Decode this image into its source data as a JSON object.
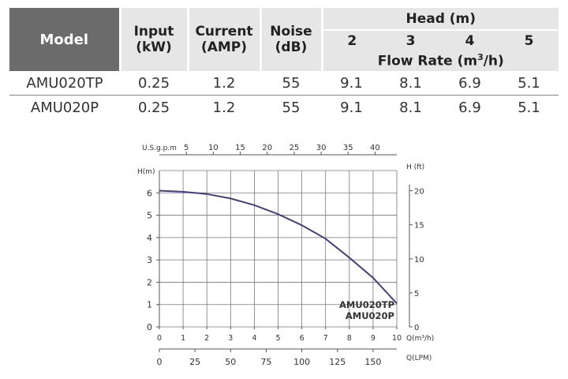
{
  "table": {
    "headers": {
      "model": "Model",
      "input": [
        "Input",
        "(kW)"
      ],
      "current": [
        "Current",
        "(AMP)"
      ],
      "noise": [
        "Noise",
        "(dB)"
      ],
      "head": "Head (m)",
      "head_values": [
        "2",
        "3",
        "4",
        "5"
      ],
      "flow_rate_prefix": "Flow Rate (m",
      "flow_rate_sup": "3",
      "flow_rate_suffix": "/h)"
    },
    "rows": [
      {
        "model": "AMU020TP",
        "input": "0.25",
        "current": "1.2",
        "noise": "55",
        "flows": [
          "9.1",
          "8.1",
          "6.9",
          "5.1"
        ]
      },
      {
        "model": "AMU020P",
        "input": "0.25",
        "current": "1.2",
        "noise": "55",
        "flows": [
          "9.1",
          "8.1",
          "6.9",
          "5.1"
        ]
      }
    ]
  },
  "chart_data": {
    "type": "line",
    "x": [
      0,
      1,
      2,
      3,
      4,
      5,
      6,
      7,
      8,
      9,
      10
    ],
    "series": [
      {
        "name": "AMU020TP AMU020P",
        "values": [
          6.1,
          6.05,
          5.95,
          5.75,
          5.45,
          5.05,
          4.55,
          3.95,
          3.1,
          2.2,
          1.05
        ]
      }
    ],
    "legend_lines": [
      "AMU020TP",
      "AMU020P"
    ],
    "xlim": [
      0,
      10
    ],
    "ylim": [
      0,
      7
    ],
    "grid": true,
    "legend_position": "bottom-right",
    "series_color": "#4a3d7a",
    "axes": {
      "left": {
        "label": "H(m)",
        "ticks": [
          "0",
          "1",
          "2",
          "3",
          "4",
          "5",
          "6"
        ]
      },
      "right": {
        "label": "H (ft)",
        "ticks": [
          "0",
          "5",
          "10",
          "15",
          "20"
        ],
        "values": [
          0,
          5,
          10,
          15,
          20
        ]
      },
      "bottom": {
        "label": "Q(m³/h)",
        "ticks": [
          "0",
          "1",
          "2",
          "3",
          "4",
          "5",
          "6",
          "7",
          "8",
          "9",
          "10"
        ]
      },
      "lpm": {
        "label": "Q(LPM)",
        "ticks": [
          "0",
          "25",
          "50",
          "75",
          "100",
          "125",
          "150"
        ],
        "values": [
          0,
          25,
          50,
          75,
          100,
          125,
          150
        ]
      },
      "top": {
        "label": "U.S.g.p.m",
        "ticks": [
          "5",
          "10",
          "15",
          "20",
          "25",
          "30",
          "35",
          "40"
        ],
        "values": [
          5,
          10,
          15,
          20,
          25,
          30,
          35,
          40
        ]
      }
    }
  }
}
